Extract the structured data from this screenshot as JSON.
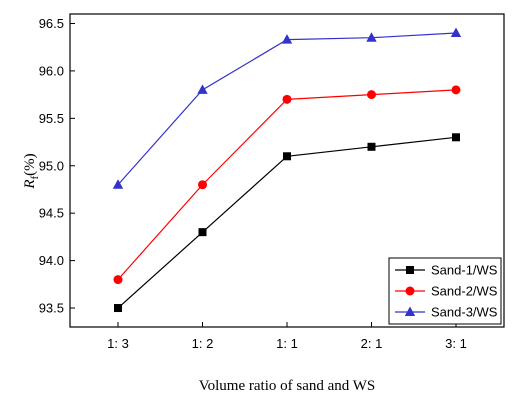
{
  "chart_data": {
    "type": "line",
    "categories": [
      "1: 3",
      "1: 2",
      "1: 1",
      "2: 1",
      "3: 1"
    ],
    "xlabel": "Volume ratio of sand and WS",
    "ylabel": "R",
    "ylabel_sub": "f",
    "ylabel_unit": "(%)",
    "ylim": [
      93.3,
      96.6
    ],
    "yticks": [
      "93.5",
      "94.0",
      "94.5",
      "95.0",
      "95.5",
      "96.0",
      "96.5"
    ],
    "grid": false,
    "legend_position": "bottom-right",
    "series": [
      {
        "name": "Sand-1/WS",
        "color": "#000000",
        "marker": "square",
        "values": [
          93.5,
          94.3,
          95.1,
          95.2,
          95.3
        ]
      },
      {
        "name": "Sand-2/WS",
        "color": "#ff0000",
        "marker": "circle",
        "values": [
          93.8,
          94.8,
          95.7,
          95.75,
          95.8
        ]
      },
      {
        "name": "Sand-3/WS",
        "color": "#3333cc",
        "marker": "triangle",
        "values": [
          94.8,
          95.8,
          96.33,
          96.35,
          96.4
        ]
      }
    ]
  }
}
